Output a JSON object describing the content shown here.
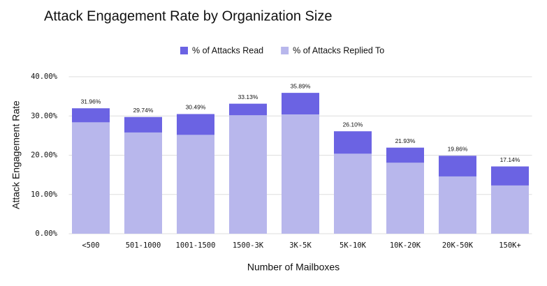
{
  "chart_data": {
    "type": "bar",
    "title": "Attack Engagement Rate by Organization Size",
    "x_label": "Number of Mailboxes",
    "y_label": "Attack  Engagement Rate",
    "categories": [
      "<500",
      "501-1000",
      "1001-1500",
      "1500-3K",
      "3K-5K",
      "5K-10K",
      "10K-20K",
      "20K-50K",
      "150K+"
    ],
    "series": [
      {
        "name": "% of Attacks Read",
        "color": "#6b63e3",
        "values": [
          31.96,
          29.74,
          30.49,
          33.13,
          35.89,
          26.1,
          21.93,
          19.86,
          17.14
        ],
        "value_labels": [
          "31.96%",
          "29.74%",
          "30.49%",
          "33.13%",
          "35.89%",
          "26.10%",
          "21.93%",
          "19.86%",
          "17.14%"
        ]
      },
      {
        "name": "% of Attacks Replied To",
        "color": "#b8b7ec",
        "values": [
          28.4,
          25.8,
          25.2,
          30.2,
          30.4,
          20.4,
          18.1,
          14.6,
          12.3
        ]
      }
    ],
    "ylim": [
      0,
      40
    ],
    "yticks": [
      {
        "value": 0,
        "label": "0.00%"
      },
      {
        "value": 10,
        "label": "10.00%"
      },
      {
        "value": 20,
        "label": "20.00%"
      },
      {
        "value": 30,
        "label": "30.00%"
      },
      {
        "value": 40,
        "label": "40.00%"
      }
    ],
    "grid": true
  }
}
